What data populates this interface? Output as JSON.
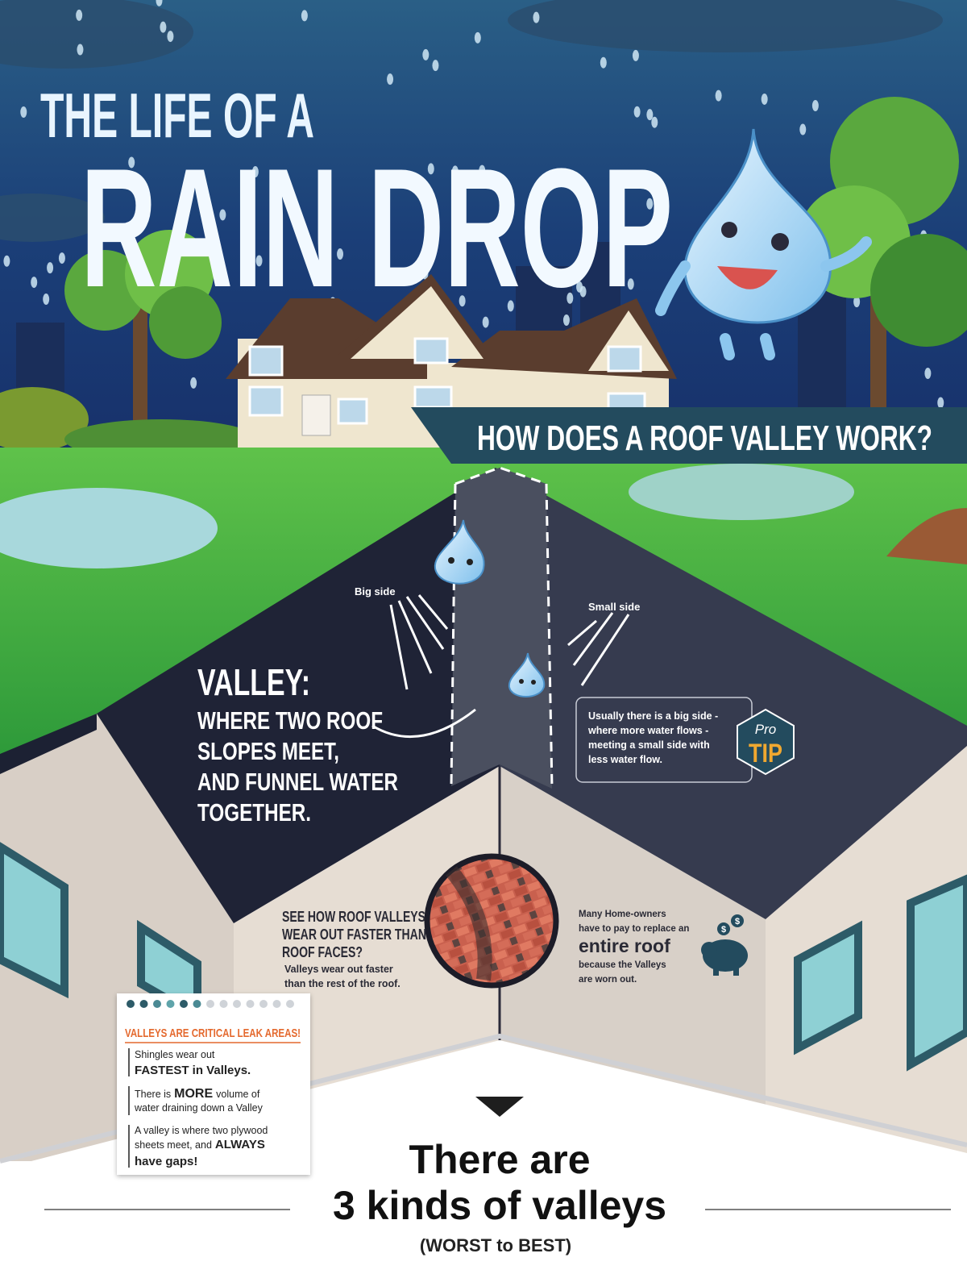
{
  "header": {
    "title_line1": "THE LIFE OF A",
    "title_line2": "RAIN DROP",
    "banner": "HOW DOES A ROOF VALLEY WORK?"
  },
  "diagram": {
    "big_side": "Big side",
    "small_side": "Small side",
    "valley_heading": "VALLEY:",
    "valley_lines": [
      "WHERE TWO ROOF",
      "SLOPES MEET,",
      "AND FUNNEL WATER",
      "TOGETHER."
    ],
    "pro_tip": {
      "badge_top": "Pro",
      "badge_bottom": "TIP",
      "lines": [
        "Usually there is a big side -",
        "where more water flows -",
        "meeting a small side with",
        "less water flow."
      ]
    }
  },
  "wear": {
    "question_lines": [
      "SEE HOW ROOF VALLEYS",
      "WEAR OUT FASTER THAN",
      "ROOF FACES?"
    ],
    "detail_lines": [
      "Valleys wear out faster",
      "than the rest of the roof."
    ]
  },
  "replace": {
    "lines_before": [
      "Many Home-owners",
      "have to pay to replace an"
    ],
    "emphasis": "entire roof",
    "lines_after": [
      "because the Valleys",
      "are worn out."
    ],
    "icon_symbol": "$"
  },
  "card": {
    "title": "VALLEYS ARE CRITICAL LEAK AREAS!",
    "item1": {
      "line1": "Shingles wear out",
      "line2": "FASTEST in Valleys."
    },
    "item2": {
      "start": "There is",
      "bold": "MORE",
      "end": "volume of",
      "line2": "water draining down a Valley"
    },
    "item3": {
      "line1": "A valley is where two plywood",
      "start": "sheets meet, and",
      "bold": "ALWAYS",
      "line3": "have gaps!"
    }
  },
  "footer": {
    "line1": "There are",
    "line2": "3 kinds of valleys",
    "line3": "(WORST to BEST)"
  }
}
